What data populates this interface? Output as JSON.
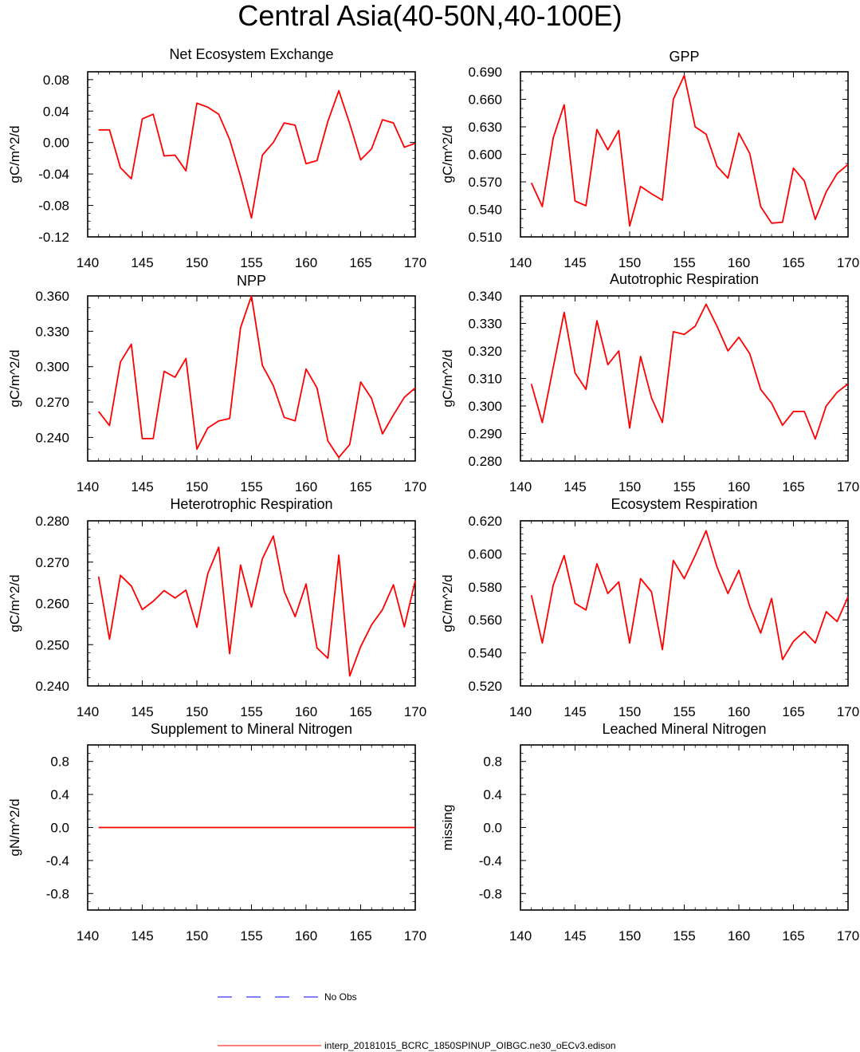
{
  "title": "Central Asia(40-50N,40-100E)",
  "colors": {
    "model": "#ff0000",
    "obs": "#0000ff",
    "axis": "#000000"
  },
  "legend": {
    "obs_label": "No Obs",
    "model_label": "interp_20181015_BCRC_1850SPINUP_OIBGC.ne30_oECv3.edison"
  },
  "chart_data": [
    {
      "type": "line",
      "title": "Net Ecosystem Exchange",
      "ylabel": "gC/m^2/d",
      "xlim": [
        140,
        170
      ],
      "xticks": [
        140,
        145,
        150,
        155,
        160,
        165,
        170
      ],
      "ylim": [
        -0.12,
        0.09
      ],
      "yticks": [
        -0.12,
        -0.08,
        -0.04,
        0.0,
        0.04,
        0.08
      ],
      "ytick_labels": [
        "-0.12",
        "-0.08",
        "-0.04",
        "0.00",
        "0.04",
        "0.08"
      ],
      "ymin_step": 0.01,
      "x": [
        141,
        142,
        143,
        144,
        145,
        146,
        147,
        148,
        149,
        150,
        151,
        152,
        153,
        154,
        155,
        156,
        157,
        158,
        159,
        160,
        161,
        162,
        163,
        164,
        165,
        166,
        167,
        168,
        169,
        170
      ],
      "values": [
        0.016,
        0.016,
        -0.032,
        -0.046,
        0.03,
        0.036,
        -0.017,
        -0.016,
        -0.036,
        0.05,
        0.045,
        0.036,
        0.004,
        -0.043,
        -0.096,
        -0.016,
        0.0,
        0.025,
        0.022,
        -0.027,
        -0.023,
        0.027,
        0.066,
        0.024,
        -0.022,
        -0.008,
        0.029,
        0.025,
        -0.006,
        -0.001
      ]
    },
    {
      "type": "line",
      "title": "GPP",
      "ylabel": "gC/m^2/d",
      "xlim": [
        140,
        170
      ],
      "xticks": [
        140,
        145,
        150,
        155,
        160,
        165,
        170
      ],
      "ylim": [
        0.51,
        0.69
      ],
      "yticks": [
        0.51,
        0.54,
        0.57,
        0.6,
        0.63,
        0.66,
        0.69
      ],
      "ytick_labels": [
        "0.510",
        "0.540",
        "0.570",
        "0.600",
        "0.630",
        "0.660",
        "0.690"
      ],
      "ymin_step": 0.01,
      "x": [
        141,
        142,
        143,
        144,
        145,
        146,
        147,
        148,
        149,
        150,
        151,
        152,
        153,
        154,
        155,
        156,
        157,
        158,
        159,
        160,
        161,
        162,
        163,
        164,
        165,
        166,
        167,
        168,
        169,
        170
      ],
      "values": [
        0.569,
        0.543,
        0.618,
        0.654,
        0.549,
        0.544,
        0.627,
        0.605,
        0.626,
        0.522,
        0.565,
        0.557,
        0.55,
        0.66,
        0.686,
        0.63,
        0.622,
        0.587,
        0.574,
        0.623,
        0.601,
        0.543,
        0.525,
        0.526,
        0.585,
        0.571,
        0.529,
        0.559,
        0.579,
        0.589
      ]
    },
    {
      "type": "line",
      "title": "NPP",
      "ylabel": "gC/m^2/d",
      "xlim": [
        140,
        170
      ],
      "xticks": [
        140,
        145,
        150,
        155,
        160,
        165,
        170
      ],
      "ylim": [
        0.22,
        0.36
      ],
      "yticks": [
        0.24,
        0.27,
        0.3,
        0.33,
        0.36
      ],
      "ytick_labels": [
        "0.240",
        "0.270",
        "0.300",
        "0.330",
        "0.360"
      ],
      "ymin_step": 0.01,
      "x": [
        141,
        142,
        143,
        144,
        145,
        146,
        147,
        148,
        149,
        150,
        151,
        152,
        153,
        154,
        155,
        156,
        157,
        158,
        159,
        160,
        161,
        162,
        163,
        164,
        165,
        166,
        167,
        168,
        169,
        170
      ],
      "values": [
        0.262,
        0.25,
        0.304,
        0.319,
        0.239,
        0.239,
        0.296,
        0.291,
        0.307,
        0.23,
        0.248,
        0.254,
        0.256,
        0.333,
        0.36,
        0.301,
        0.284,
        0.257,
        0.254,
        0.298,
        0.282,
        0.237,
        0.223,
        0.234,
        0.287,
        0.273,
        0.243,
        0.259,
        0.274,
        0.282
      ]
    },
    {
      "type": "line",
      "title": "Autotrophic Respiration",
      "ylabel": "gC/m^2/d",
      "xlim": [
        140,
        170
      ],
      "xticks": [
        140,
        145,
        150,
        155,
        160,
        165,
        170
      ],
      "ylim": [
        0.28,
        0.34
      ],
      "yticks": [
        0.28,
        0.29,
        0.3,
        0.31,
        0.32,
        0.33,
        0.34
      ],
      "ytick_labels": [
        "0.280",
        "0.290",
        "0.300",
        "0.310",
        "0.320",
        "0.330",
        "0.340"
      ],
      "ymin_step": 0.002,
      "x": [
        141,
        142,
        143,
        144,
        145,
        146,
        147,
        148,
        149,
        150,
        151,
        152,
        153,
        154,
        155,
        156,
        157,
        158,
        159,
        160,
        161,
        162,
        163,
        164,
        165,
        166,
        167,
        168,
        169,
        170
      ],
      "values": [
        0.308,
        0.294,
        0.314,
        0.334,
        0.312,
        0.306,
        0.331,
        0.315,
        0.32,
        0.292,
        0.318,
        0.303,
        0.294,
        0.327,
        0.326,
        0.329,
        0.337,
        0.329,
        0.32,
        0.325,
        0.319,
        0.306,
        0.301,
        0.293,
        0.298,
        0.298,
        0.288,
        0.3,
        0.305,
        0.308
      ]
    },
    {
      "type": "line",
      "title": "Heterotrophic Respiration",
      "ylabel": "gC/m^2/d",
      "xlim": [
        140,
        170
      ],
      "xticks": [
        140,
        145,
        150,
        155,
        160,
        165,
        170
      ],
      "ylim": [
        0.24,
        0.28
      ],
      "yticks": [
        0.24,
        0.25,
        0.26,
        0.27,
        0.28
      ],
      "ytick_labels": [
        "0.240",
        "0.250",
        "0.260",
        "0.270",
        "0.280"
      ],
      "ymin_step": 0.002,
      "x": [
        141,
        142,
        143,
        144,
        145,
        146,
        147,
        148,
        149,
        150,
        151,
        152,
        153,
        154,
        155,
        156,
        157,
        158,
        159,
        160,
        161,
        162,
        163,
        164,
        165,
        166,
        167,
        168,
        169,
        170
      ],
      "values": [
        0.2665,
        0.2513,
        0.2668,
        0.2642,
        0.2585,
        0.2605,
        0.2631,
        0.2613,
        0.2632,
        0.2542,
        0.2672,
        0.2736,
        0.2478,
        0.2693,
        0.2591,
        0.2708,
        0.2763,
        0.2629,
        0.2568,
        0.2647,
        0.2492,
        0.2467,
        0.2717,
        0.2424,
        0.2495,
        0.2548,
        0.2585,
        0.2645,
        0.2543,
        0.2655
      ]
    },
    {
      "type": "line",
      "title": "Ecosystem Respiration",
      "ylabel": "gC/m^2/d",
      "xlim": [
        140,
        170
      ],
      "xticks": [
        140,
        145,
        150,
        155,
        160,
        165,
        170
      ],
      "ylim": [
        0.52,
        0.62
      ],
      "yticks": [
        0.52,
        0.54,
        0.56,
        0.58,
        0.6,
        0.62
      ],
      "ytick_labels": [
        "0.520",
        "0.540",
        "0.560",
        "0.580",
        "0.600",
        "0.620"
      ],
      "ymin_step": 0.004,
      "x": [
        141,
        142,
        143,
        144,
        145,
        146,
        147,
        148,
        149,
        150,
        151,
        152,
        153,
        154,
        155,
        156,
        157,
        158,
        159,
        160,
        161,
        162,
        163,
        164,
        165,
        166,
        167,
        168,
        169,
        170
      ],
      "values": [
        0.575,
        0.546,
        0.581,
        0.599,
        0.57,
        0.566,
        0.594,
        0.576,
        0.583,
        0.546,
        0.585,
        0.577,
        0.542,
        0.596,
        0.585,
        0.599,
        0.614,
        0.592,
        0.576,
        0.59,
        0.568,
        0.552,
        0.573,
        0.536,
        0.547,
        0.553,
        0.546,
        0.565,
        0.559,
        0.574
      ]
    },
    {
      "type": "line",
      "title": "Supplement to Mineral Nitrogen",
      "ylabel": "gN/m^2/d",
      "xlim": [
        140,
        170
      ],
      "xticks": [
        140,
        145,
        150,
        155,
        160,
        165,
        170
      ],
      "ylim": [
        -1.0,
        1.0
      ],
      "yticks": [
        -0.8,
        -0.4,
        0.0,
        0.4,
        0.8
      ],
      "ytick_labels": [
        "-0.8",
        "-0.4",
        "0.0",
        "0.4",
        "0.8"
      ],
      "ymin_step": 0.1,
      "x": [
        141,
        142,
        143,
        144,
        145,
        146,
        147,
        148,
        149,
        150,
        151,
        152,
        153,
        154,
        155,
        156,
        157,
        158,
        159,
        160,
        161,
        162,
        163,
        164,
        165,
        166,
        167,
        168,
        169,
        170
      ],
      "values": [
        0,
        0,
        0,
        0,
        0,
        0,
        0,
        0,
        0,
        0,
        0,
        0,
        0,
        0,
        0,
        0,
        0,
        0,
        0,
        0,
        0,
        0,
        0,
        0,
        0,
        0,
        0,
        0,
        0,
        0
      ]
    },
    {
      "type": "line",
      "title": "Leached Mineral Nitrogen",
      "ylabel": "missing",
      "xlim": [
        140,
        170
      ],
      "xticks": [
        140,
        145,
        150,
        155,
        160,
        165,
        170
      ],
      "ylim": [
        -1.0,
        1.0
      ],
      "yticks": [
        -0.8,
        -0.4,
        0.0,
        0.4,
        0.8
      ],
      "ytick_labels": [
        "-0.8",
        "-0.4",
        "0.0",
        "0.4",
        "0.8"
      ],
      "ymin_step": 0.1,
      "x": [],
      "values": []
    }
  ]
}
